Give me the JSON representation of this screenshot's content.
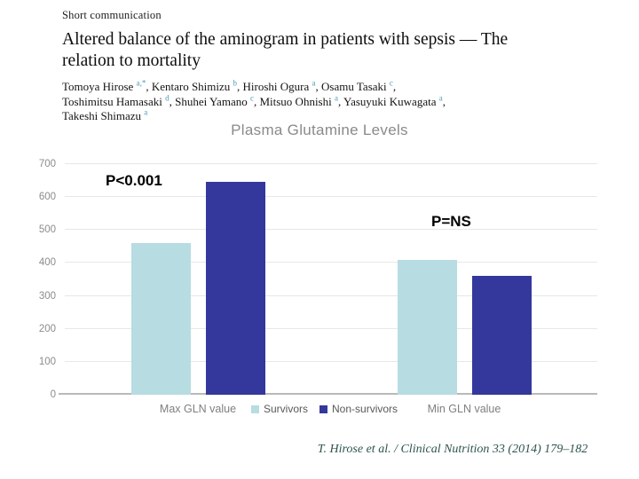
{
  "page": {
    "kicker": "Short communication",
    "title_lines": [
      "Altered balance of the aminogram in patients with sepsis — The",
      "relation to mortality"
    ],
    "author_lines": [
      [
        {
          "t": "Tomoya Hirose ",
          "s": "a,*"
        },
        {
          "t": ", Kentaro Shimizu ",
          "s": "b"
        },
        {
          "t": ", Hiroshi Ogura ",
          "s": "a"
        },
        {
          "t": ", Osamu Tasaki ",
          "s": "c"
        },
        {
          "t": ","
        }
      ],
      [
        {
          "t": "Toshimitsu Hamasaki ",
          "s": "d"
        },
        {
          "t": ", Shuhei Yamano ",
          "s": "c"
        },
        {
          "t": ", Mitsuo Ohnishi ",
          "s": "a"
        },
        {
          "t": ", Yasuyuki Kuwagata ",
          "s": "a"
        },
        {
          "t": ","
        }
      ],
      [
        {
          "t": "Takeshi Shimazu ",
          "s": "a"
        }
      ]
    ],
    "citation": "T. Hirose et al. / Clinical Nutrition 33 (2014) 179–182"
  },
  "chart_data": {
    "type": "bar",
    "title": "Plasma Glutamine Levels",
    "categories": [
      "Max GLN value",
      "Min GLN value"
    ],
    "series": [
      {
        "name": "Survivors",
        "color": "#b7dce2",
        "values": [
          460,
          410
        ]
      },
      {
        "name": "Non-survivors",
        "color": "#34379b",
        "values": [
          645,
          360
        ]
      }
    ],
    "xlabel": "",
    "ylabel": "",
    "ylim": [
      0,
      700
    ],
    "yticks": [
      0,
      100,
      200,
      300,
      400,
      500,
      600,
      700
    ],
    "grid": true,
    "legend_position": "bottom-center",
    "annotations": [
      {
        "text": "P<0.001",
        "category": "Max GLN value"
      },
      {
        "text": "P=NS",
        "category": "Min GLN value"
      }
    ],
    "colors": {
      "gridline": "#e7e7e7",
      "axis_line": "#b9b9b9",
      "tick_text": "#8c8c8c",
      "title_text": "#8a8a8a"
    }
  }
}
